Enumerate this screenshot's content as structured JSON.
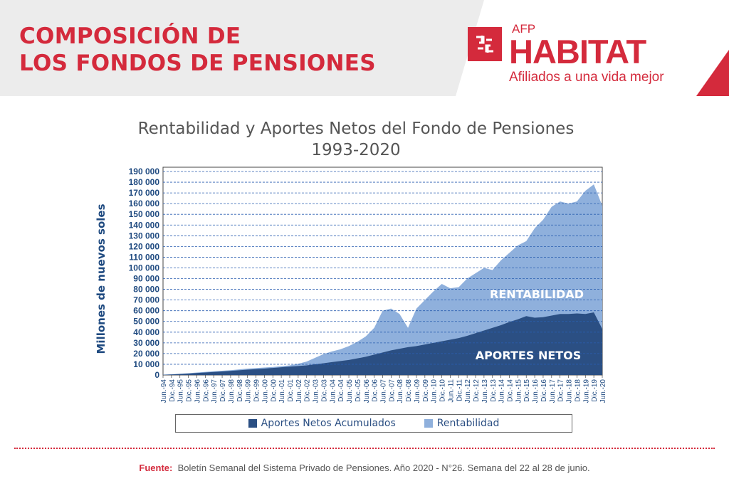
{
  "header": {
    "title_line1": "COMPOSICIÓN DE",
    "title_line2": "LOS FONDOS DE PENSIONES"
  },
  "logo": {
    "prefix": "AFP",
    "name": "HABITAT",
    "tagline": "Afiliados a una vida mejor"
  },
  "colors": {
    "brand_red": "#d42a3c",
    "aportes": "#2b4f83",
    "rentabilidad": "#8fb0dc"
  },
  "chart_data": {
    "type": "area",
    "stacked": true,
    "title": "Rentabilidad y Aportes Netos del Fondo de Pensiones",
    "subtitle": "1993-2020",
    "ylabel": "Millones de nuevos soles",
    "ylim": [
      0,
      190000
    ],
    "yticks": [
      "0",
      "10 000",
      "20 000",
      "30 000",
      "40 000",
      "50 000",
      "60 000",
      "70 000",
      "80 000",
      "90 000",
      "100 000",
      "110 000",
      "120 000",
      "130 000",
      "140 000",
      "150 000",
      "160 000",
      "170 000",
      "180 000",
      "190 000"
    ],
    "grid": true,
    "legend_position": "bottom",
    "categories": [
      "Jun.-94",
      "Dic.-94",
      "Jun.-95",
      "Dic.-95",
      "Jun.-96",
      "Dic.-96",
      "Jun.-97",
      "Dic.-97",
      "Jun.-98",
      "Dic.-98",
      "Jun.-99",
      "Dic.-99",
      "Jun.-00",
      "Dic.-00",
      "Jun.-01",
      "Dic.-01",
      "Jun.-02",
      "Dic.-02",
      "Jun.-03",
      "Dic.-03",
      "Jun.-04",
      "Dic.-04",
      "Jun.-05",
      "Dic.-05",
      "Jun.-06",
      "Dic.-06",
      "Jun.-07",
      "Dic.-07",
      "Jun.-08",
      "Dic.-08",
      "Jun.-09",
      "Dic.-09",
      "Jun.-10",
      "Dic.-10",
      "Jun.-11",
      "Dic.-11",
      "Jun.-12",
      "Dic.-12",
      "Jun.-13",
      "Dic.-13",
      "Jun.-14",
      "Dic.-14",
      "Jun.-15",
      "Dic.-15",
      "Jun.-16",
      "Dic.-16",
      "Jun.-17",
      "Dic.-17",
      "Jun.-18",
      "Dic.-18",
      "Jun.-19",
      "Dic.-19",
      "Jun.-20"
    ],
    "series": [
      {
        "name": "Aportes Netos Acumulados",
        "area_label": "APORTES NETOS",
        "values": [
          200,
          500,
          900,
          1300,
          1800,
          2300,
          2800,
          3300,
          3800,
          4400,
          5000,
          5500,
          6000,
          6600,
          7200,
          7800,
          8400,
          9000,
          10000,
          11000,
          12000,
          13000,
          14000,
          15500,
          17000,
          19000,
          21000,
          23000,
          24500,
          26000,
          27000,
          28500,
          30000,
          31500,
          33000,
          34500,
          36500,
          39000,
          41500,
          44000,
          46500,
          49500,
          52000,
          55000,
          53500,
          54000,
          55500,
          57000,
          57000,
          57500,
          57000,
          58500,
          43000
        ]
      },
      {
        "name": "Rentabilidad",
        "area_label": "RENTABILIDAD",
        "total_values": [
          300,
          700,
          1200,
          1700,
          2300,
          2900,
          3500,
          4000,
          4500,
          5200,
          6000,
          6500,
          7000,
          7500,
          8200,
          9000,
          10500,
          12500,
          16000,
          19500,
          22000,
          24000,
          27000,
          31000,
          36000,
          44000,
          60000,
          62000,
          57000,
          44000,
          62000,
          70000,
          78000,
          85000,
          81000,
          82000,
          90000,
          95000,
          100000,
          98000,
          107000,
          114000,
          121000,
          125000,
          137000,
          145000,
          157000,
          162000,
          160000,
          162000,
          172000,
          178000,
          158000
        ]
      }
    ]
  },
  "footer": {
    "label": "Fuente:",
    "text": "Boletín Semanal del Sistema Privado de Pensiones. Año 2020 - N°26. Semana del 22 al 28 de junio."
  }
}
